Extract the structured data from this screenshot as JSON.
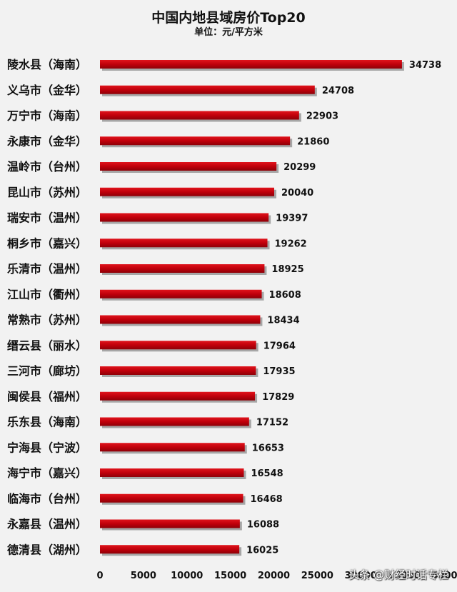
{
  "chart_data": {
    "type": "bar",
    "orientation": "horizontal",
    "title": "中国内地县域房价Top20",
    "subtitle": "单位：元/平方米",
    "categories": [
      "陵水县（海南）",
      "义乌市（金华）",
      "万宁市（海南）",
      "永康市（金华）",
      "温岭市（台州）",
      "昆山市（苏州）",
      "瑞安市（温州）",
      "桐乡市（嘉兴）",
      "乐清市（温州）",
      "江山市（衢州）",
      "常熟市（苏州）",
      "缙云县（丽水）",
      "三河市（廊坊）",
      "闽侯县（福州）",
      "乐东县（海南）",
      "宁海县（宁波）",
      "海宁市（嘉兴）",
      "临海市（台州）",
      "永嘉县（温州）",
      "德清县（湖州）"
    ],
    "values": [
      34738,
      24708,
      22903,
      21860,
      20299,
      20040,
      19397,
      19262,
      18925,
      18608,
      18434,
      17964,
      17935,
      17829,
      17152,
      16653,
      16548,
      16468,
      16088,
      16025
    ],
    "xlim": [
      0,
      40000
    ],
    "xticks": [
      "0",
      "5000",
      "10000",
      "15000",
      "20000",
      "25000",
      "30000",
      "35000",
      "40000"
    ],
    "grid": false,
    "bar_color": "#c0000b",
    "bar_shadow_color": "#a6a6a6"
  },
  "watermark": "头条 @财经时话专栏"
}
